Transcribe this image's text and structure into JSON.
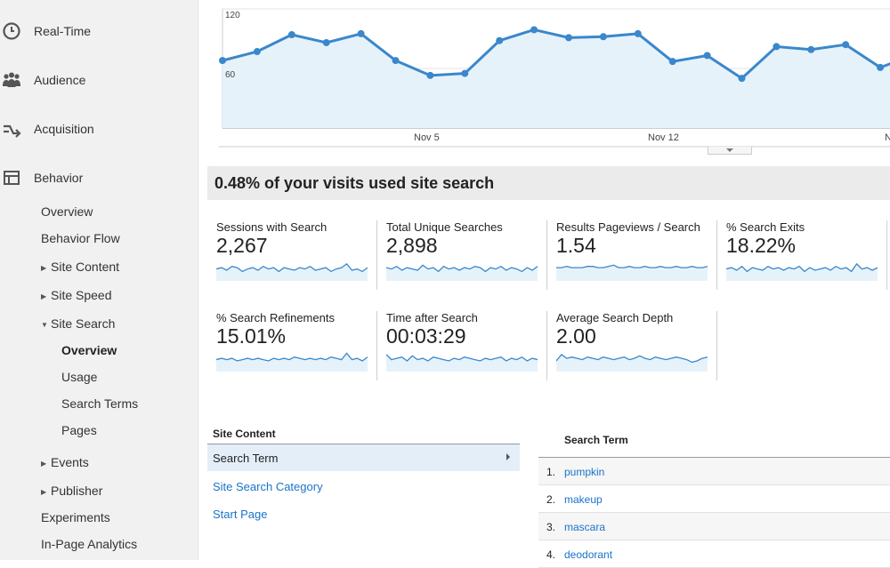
{
  "sidebar": {
    "top_items": [
      {
        "label": "Real-Time",
        "icon": "clock-icon"
      },
      {
        "label": "Audience",
        "icon": "people-icon"
      },
      {
        "label": "Acquisition",
        "icon": "acquisition-arrows-icon"
      },
      {
        "label": "Behavior",
        "icon": "behavior-layout-icon"
      }
    ],
    "behavior_items": {
      "overview": "Overview",
      "behavior_flow": "Behavior Flow",
      "site_content": "Site Content",
      "site_speed": "Site Speed",
      "site_search": "Site Search",
      "ss_overview": "Overview",
      "ss_usage": "Usage",
      "ss_search_terms": "Search Terms",
      "ss_pages": "Pages",
      "events": "Events",
      "publisher": "Publisher",
      "experiments": "Experiments",
      "in_page_analytics": "In-Page Analytics"
    }
  },
  "chart_data": {
    "type": "area",
    "y_ticks": [
      "120",
      "60"
    ],
    "x_ticks": [
      "Nov 5",
      "Nov 12",
      "N"
    ],
    "ylim": [
      0,
      120
    ],
    "values": [
      68,
      77,
      94,
      86,
      95,
      68,
      53,
      55,
      88,
      99,
      91,
      92,
      95,
      67,
      73,
      50,
      82,
      79,
      84,
      61,
      74
    ],
    "grid": true,
    "colors": {
      "line": "#3a87cc",
      "fill": "#e6f2fa",
      "grid": "#e3e3e3"
    }
  },
  "banner": "0.48% of your visits used site search",
  "metrics": [
    {
      "title": "Sessions with Search",
      "value": "2,267",
      "spark": [
        8,
        9,
        7,
        10,
        9,
        6,
        8,
        9,
        7,
        10,
        8,
        9,
        6,
        9,
        8,
        7,
        9,
        8,
        10,
        7,
        8,
        9,
        6,
        8,
        9,
        12,
        7,
        8,
        6,
        9
      ]
    },
    {
      "title": "Total Unique Searches",
      "value": "2,898",
      "spark": [
        9,
        8,
        10,
        7,
        9,
        8,
        7,
        11,
        8,
        9,
        6,
        10,
        8,
        9,
        7,
        9,
        8,
        10,
        9,
        6,
        9,
        8,
        10,
        7,
        9,
        8,
        6,
        9,
        7,
        10
      ]
    },
    {
      "title": "Results Pageviews / Search",
      "value": "1.54",
      "spark": [
        9,
        9,
        10,
        9,
        9,
        9,
        10,
        10,
        9,
        9,
        10,
        11,
        9,
        9,
        10,
        9,
        9,
        10,
        9,
        9,
        10,
        9,
        9,
        10,
        9,
        9,
        10,
        9,
        9,
        10
      ]
    },
    {
      "title": "% Search Exits",
      "value": "18.22%",
      "spark": [
        8,
        9,
        7,
        10,
        6,
        9,
        8,
        7,
        10,
        8,
        9,
        7,
        9,
        8,
        10,
        6,
        9,
        7,
        8,
        9,
        7,
        10,
        8,
        9,
        6,
        12,
        8,
        9,
        7,
        9
      ]
    },
    {
      "title": "% Search Refinements",
      "value": "15.01%",
      "spark": [
        8,
        9,
        8,
        9,
        7,
        8,
        9,
        8,
        9,
        8,
        7,
        9,
        8,
        9,
        8,
        10,
        9,
        8,
        9,
        8,
        9,
        8,
        10,
        9,
        8,
        13,
        8,
        9,
        7,
        10
      ]
    },
    {
      "title": "Time after Search",
      "value": "00:03:29",
      "spark": [
        12,
        8,
        9,
        10,
        7,
        11,
        8,
        9,
        7,
        10,
        9,
        8,
        7,
        9,
        8,
        10,
        9,
        8,
        7,
        9,
        8,
        9,
        10,
        7,
        9,
        8,
        10,
        7,
        9,
        8
      ]
    },
    {
      "title": "Average Search Depth",
      "value": "2.00",
      "spark": [
        7,
        12,
        9,
        10,
        9,
        8,
        10,
        9,
        8,
        10,
        9,
        8,
        9,
        10,
        8,
        9,
        11,
        9,
        8,
        10,
        9,
        8,
        9,
        10,
        9,
        8,
        6,
        7,
        9,
        10
      ]
    }
  ],
  "site_content": {
    "title": "Site Content",
    "active": "Search Term",
    "links": [
      "Site Search Category",
      "Start Page"
    ]
  },
  "search_terms": {
    "header": "Search Term",
    "rows": [
      {
        "num": "1.",
        "term": "pumpkin"
      },
      {
        "num": "2.",
        "term": "makeup"
      },
      {
        "num": "3.",
        "term": "mascara"
      },
      {
        "num": "4.",
        "term": "deodorant"
      }
    ]
  }
}
